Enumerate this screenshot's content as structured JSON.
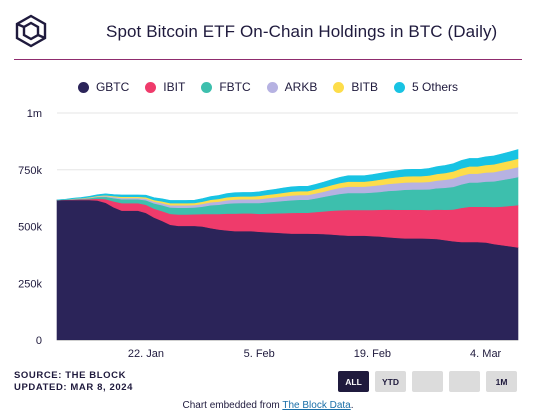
{
  "title": "Spot Bitcoin ETF On-Chain Holdings in BTC (Daily)",
  "logo_icon": "the-block-cube-icon",
  "source_line": "SOURCE: THE BLOCK",
  "updated_line": "UPDATED: MAR 8, 2024",
  "range_buttons": [
    {
      "label": "ALL",
      "active": true
    },
    {
      "label": "YTD",
      "active": false
    },
    {
      "label": "",
      "active": false
    },
    {
      "label": "",
      "active": false
    },
    {
      "label": "1M",
      "active": false
    }
  ],
  "footer": {
    "prefix": "Chart embedded from ",
    "link_text": "The Block Data",
    "suffix": "."
  },
  "colors": {
    "title_rule": "#8f2c6e",
    "GBTC": "#2b2459",
    "IBIT": "#ef3b6b",
    "FBTC": "#3dbfad",
    "ARKB": "#b6b2e2",
    "BITB": "#fddd4a",
    "5 Others": "#18c3e3"
  },
  "chart_data": {
    "type": "area",
    "stacked": true,
    "title": "Spot Bitcoin ETF On-Chain Holdings in BTC (Daily)",
    "xlabel": "",
    "ylabel": "",
    "ylim": [
      0,
      1000000
    ],
    "yticks": [
      0,
      250000,
      500000,
      750000,
      1000000
    ],
    "ytick_labels": [
      "0",
      "250k",
      "500k",
      "750k",
      "1m"
    ],
    "xticks": [
      "2024-01-22",
      "2024-02-05",
      "2024-02-19",
      "2024-03-04"
    ],
    "xtick_labels": [
      "22. Jan",
      "5. Feb",
      "19. Feb",
      "4. Mar"
    ],
    "grid": true,
    "legend_position": "top",
    "x": [
      "2024-01-11",
      "2024-01-12",
      "2024-01-13",
      "2024-01-14",
      "2024-01-15",
      "2024-01-16",
      "2024-01-17",
      "2024-01-18",
      "2024-01-19",
      "2024-01-20",
      "2024-01-21",
      "2024-01-22",
      "2024-01-23",
      "2024-01-24",
      "2024-01-25",
      "2024-01-26",
      "2024-01-27",
      "2024-01-28",
      "2024-01-29",
      "2024-01-30",
      "2024-01-31",
      "2024-02-01",
      "2024-02-02",
      "2024-02-03",
      "2024-02-04",
      "2024-02-05",
      "2024-02-06",
      "2024-02-07",
      "2024-02-08",
      "2024-02-09",
      "2024-02-10",
      "2024-02-11",
      "2024-02-12",
      "2024-02-13",
      "2024-02-14",
      "2024-02-15",
      "2024-02-16",
      "2024-02-17",
      "2024-02-18",
      "2024-02-19",
      "2024-02-20",
      "2024-02-21",
      "2024-02-22",
      "2024-02-23",
      "2024-02-24",
      "2024-02-25",
      "2024-02-26",
      "2024-02-27",
      "2024-02-28",
      "2024-02-29",
      "2024-03-01",
      "2024-03-02",
      "2024-03-03",
      "2024-03-04",
      "2024-03-05",
      "2024-03-06",
      "2024-03-07",
      "2024-03-08"
    ],
    "series": [
      {
        "name": "GBTC",
        "values": [
          617000,
          617000,
          617000,
          617000,
          617000,
          615000,
          605000,
          585000,
          570000,
          570000,
          570000,
          560000,
          540000,
          525000,
          508000,
          503000,
          503000,
          503000,
          500000,
          493000,
          487000,
          483000,
          480000,
          480000,
          480000,
          477000,
          475000,
          473000,
          471000,
          469000,
          469000,
          469000,
          468000,
          467000,
          465000,
          462000,
          460000,
          460000,
          460000,
          458000,
          456000,
          453000,
          450000,
          448000,
          448000,
          448000,
          447000,
          445000,
          440000,
          435000,
          432000,
          432000,
          432000,
          430000,
          423000,
          418000,
          413000,
          408000
        ]
      },
      {
        "name": "IBIT",
        "values": [
          0,
          1000,
          2000,
          3000,
          4000,
          8000,
          16000,
          26000,
          33000,
          33000,
          33000,
          36000,
          39000,
          43000,
          48000,
          50000,
          50000,
          51000,
          55000,
          63000,
          68000,
          74000,
          77000,
          78000,
          78000,
          79000,
          82000,
          85000,
          88000,
          91000,
          92000,
          92000,
          96000,
          100000,
          105000,
          110000,
          113000,
          113000,
          113000,
          115000,
          118000,
          122000,
          124000,
          126000,
          126000,
          126000,
          126000,
          130000,
          134000,
          140000,
          150000,
          155000,
          155000,
          158000,
          163000,
          170000,
          178000,
          186000
        ]
      },
      {
        "name": "FBTC",
        "values": [
          0,
          1000,
          2000,
          3000,
          4000,
          7000,
          10000,
          14000,
          17000,
          17000,
          17000,
          20000,
          23000,
          26000,
          28000,
          30000,
          30000,
          30000,
          33000,
          38000,
          41000,
          44000,
          46000,
          46000,
          46000,
          48000,
          50000,
          52000,
          54000,
          56000,
          57000,
          57000,
          60000,
          64000,
          68000,
          72000,
          75000,
          75000,
          75000,
          77000,
          79000,
          82000,
          85000,
          88000,
          89000,
          89000,
          91000,
          94000,
          97000,
          100000,
          104000,
          107000,
          107000,
          110000,
          113000,
          117000,
          120000,
          124000
        ]
      },
      {
        "name": "ARKB",
        "values": [
          0,
          0,
          1000,
          1000,
          2000,
          3000,
          4000,
          5000,
          6000,
          6000,
          6000,
          7000,
          8000,
          9000,
          10000,
          11000,
          11000,
          11000,
          12000,
          13000,
          14000,
          15000,
          16000,
          16000,
          16000,
          17000,
          18000,
          19000,
          20000,
          21000,
          21000,
          21000,
          22000,
          23000,
          25000,
          27000,
          28000,
          28000,
          28000,
          29000,
          30000,
          31000,
          32000,
          32000,
          32000,
          32000,
          33000,
          34000,
          35000,
          37000,
          38000,
          39000,
          39000,
          40000,
          41000,
          42000,
          43000,
          44000
        ]
      },
      {
        "name": "BITB",
        "values": [
          0,
          0,
          1000,
          1000,
          2000,
          2000,
          3000,
          4000,
          5000,
          5000,
          5000,
          6000,
          7000,
          8000,
          9000,
          9000,
          9000,
          9000,
          10000,
          11000,
          12000,
          13000,
          13000,
          13000,
          13000,
          14000,
          15000,
          15000,
          16000,
          17000,
          17000,
          17000,
          18000,
          19000,
          20000,
          21000,
          22000,
          22000,
          22000,
          23000,
          24000,
          25000,
          26000,
          27000,
          27000,
          27000,
          28000,
          29000,
          30000,
          31000,
          32000,
          32000,
          32000,
          33000,
          34000,
          35000,
          36000,
          37000
        ]
      },
      {
        "name": "5 Others",
        "values": [
          0,
          1000,
          2000,
          3000,
          4000,
          5000,
          6000,
          7000,
          8000,
          8000,
          8000,
          9000,
          10000,
          11000,
          12000,
          12000,
          12000,
          12000,
          13000,
          14000,
          15000,
          16000,
          17000,
          17000,
          17000,
          18000,
          19000,
          20000,
          21000,
          21000,
          21000,
          21000,
          22000,
          23000,
          24000,
          25000,
          26000,
          26000,
          26000,
          27000,
          28000,
          28000,
          29000,
          30000,
          30000,
          30000,
          31000,
          32000,
          33000,
          34000,
          35000,
          35000,
          35000,
          36000,
          37000,
          38000,
          39000,
          40000
        ]
      }
    ]
  }
}
